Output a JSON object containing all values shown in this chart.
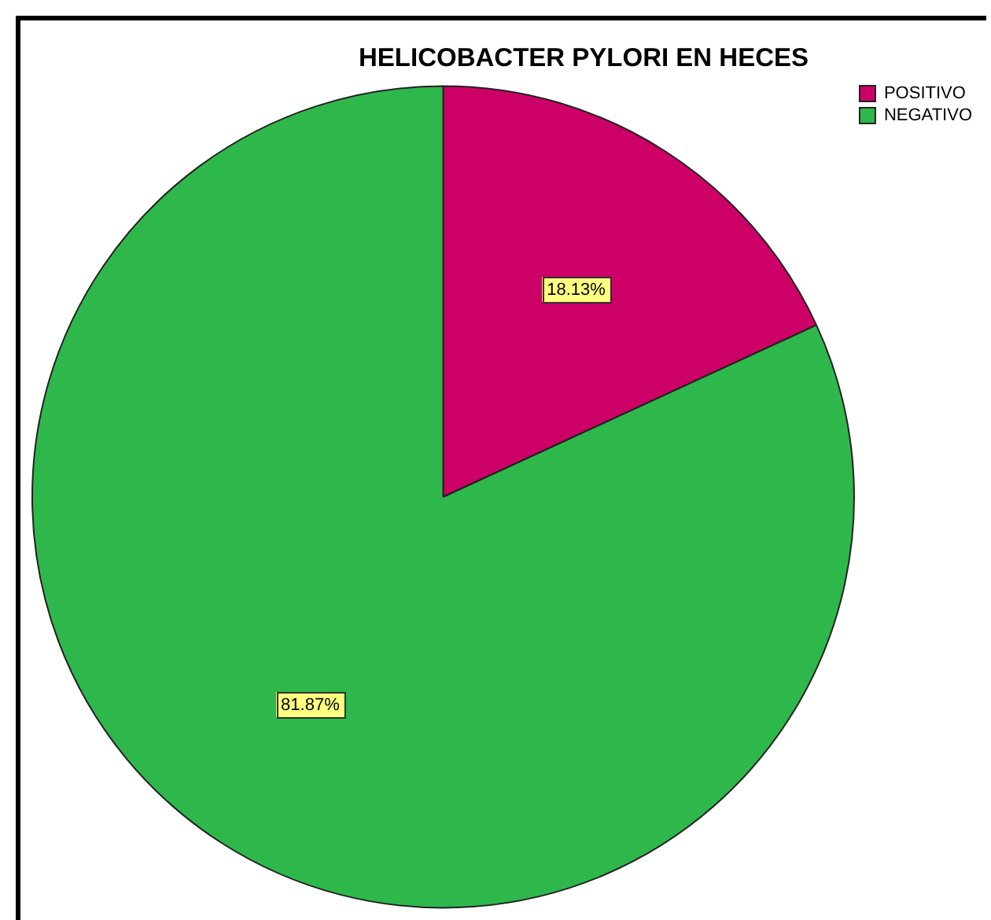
{
  "chart_data": {
    "type": "pie",
    "title": "HELICOBACTER PYLORI EN HECES",
    "categories": [
      "POSITIVO",
      "NEGATIVO"
    ],
    "values": [
      18.13,
      81.87
    ],
    "colors": [
      "#cc0066",
      "#2eb84b"
    ],
    "value_labels": [
      "18.13%",
      "81.87%"
    ],
    "legend": "top right"
  }
}
